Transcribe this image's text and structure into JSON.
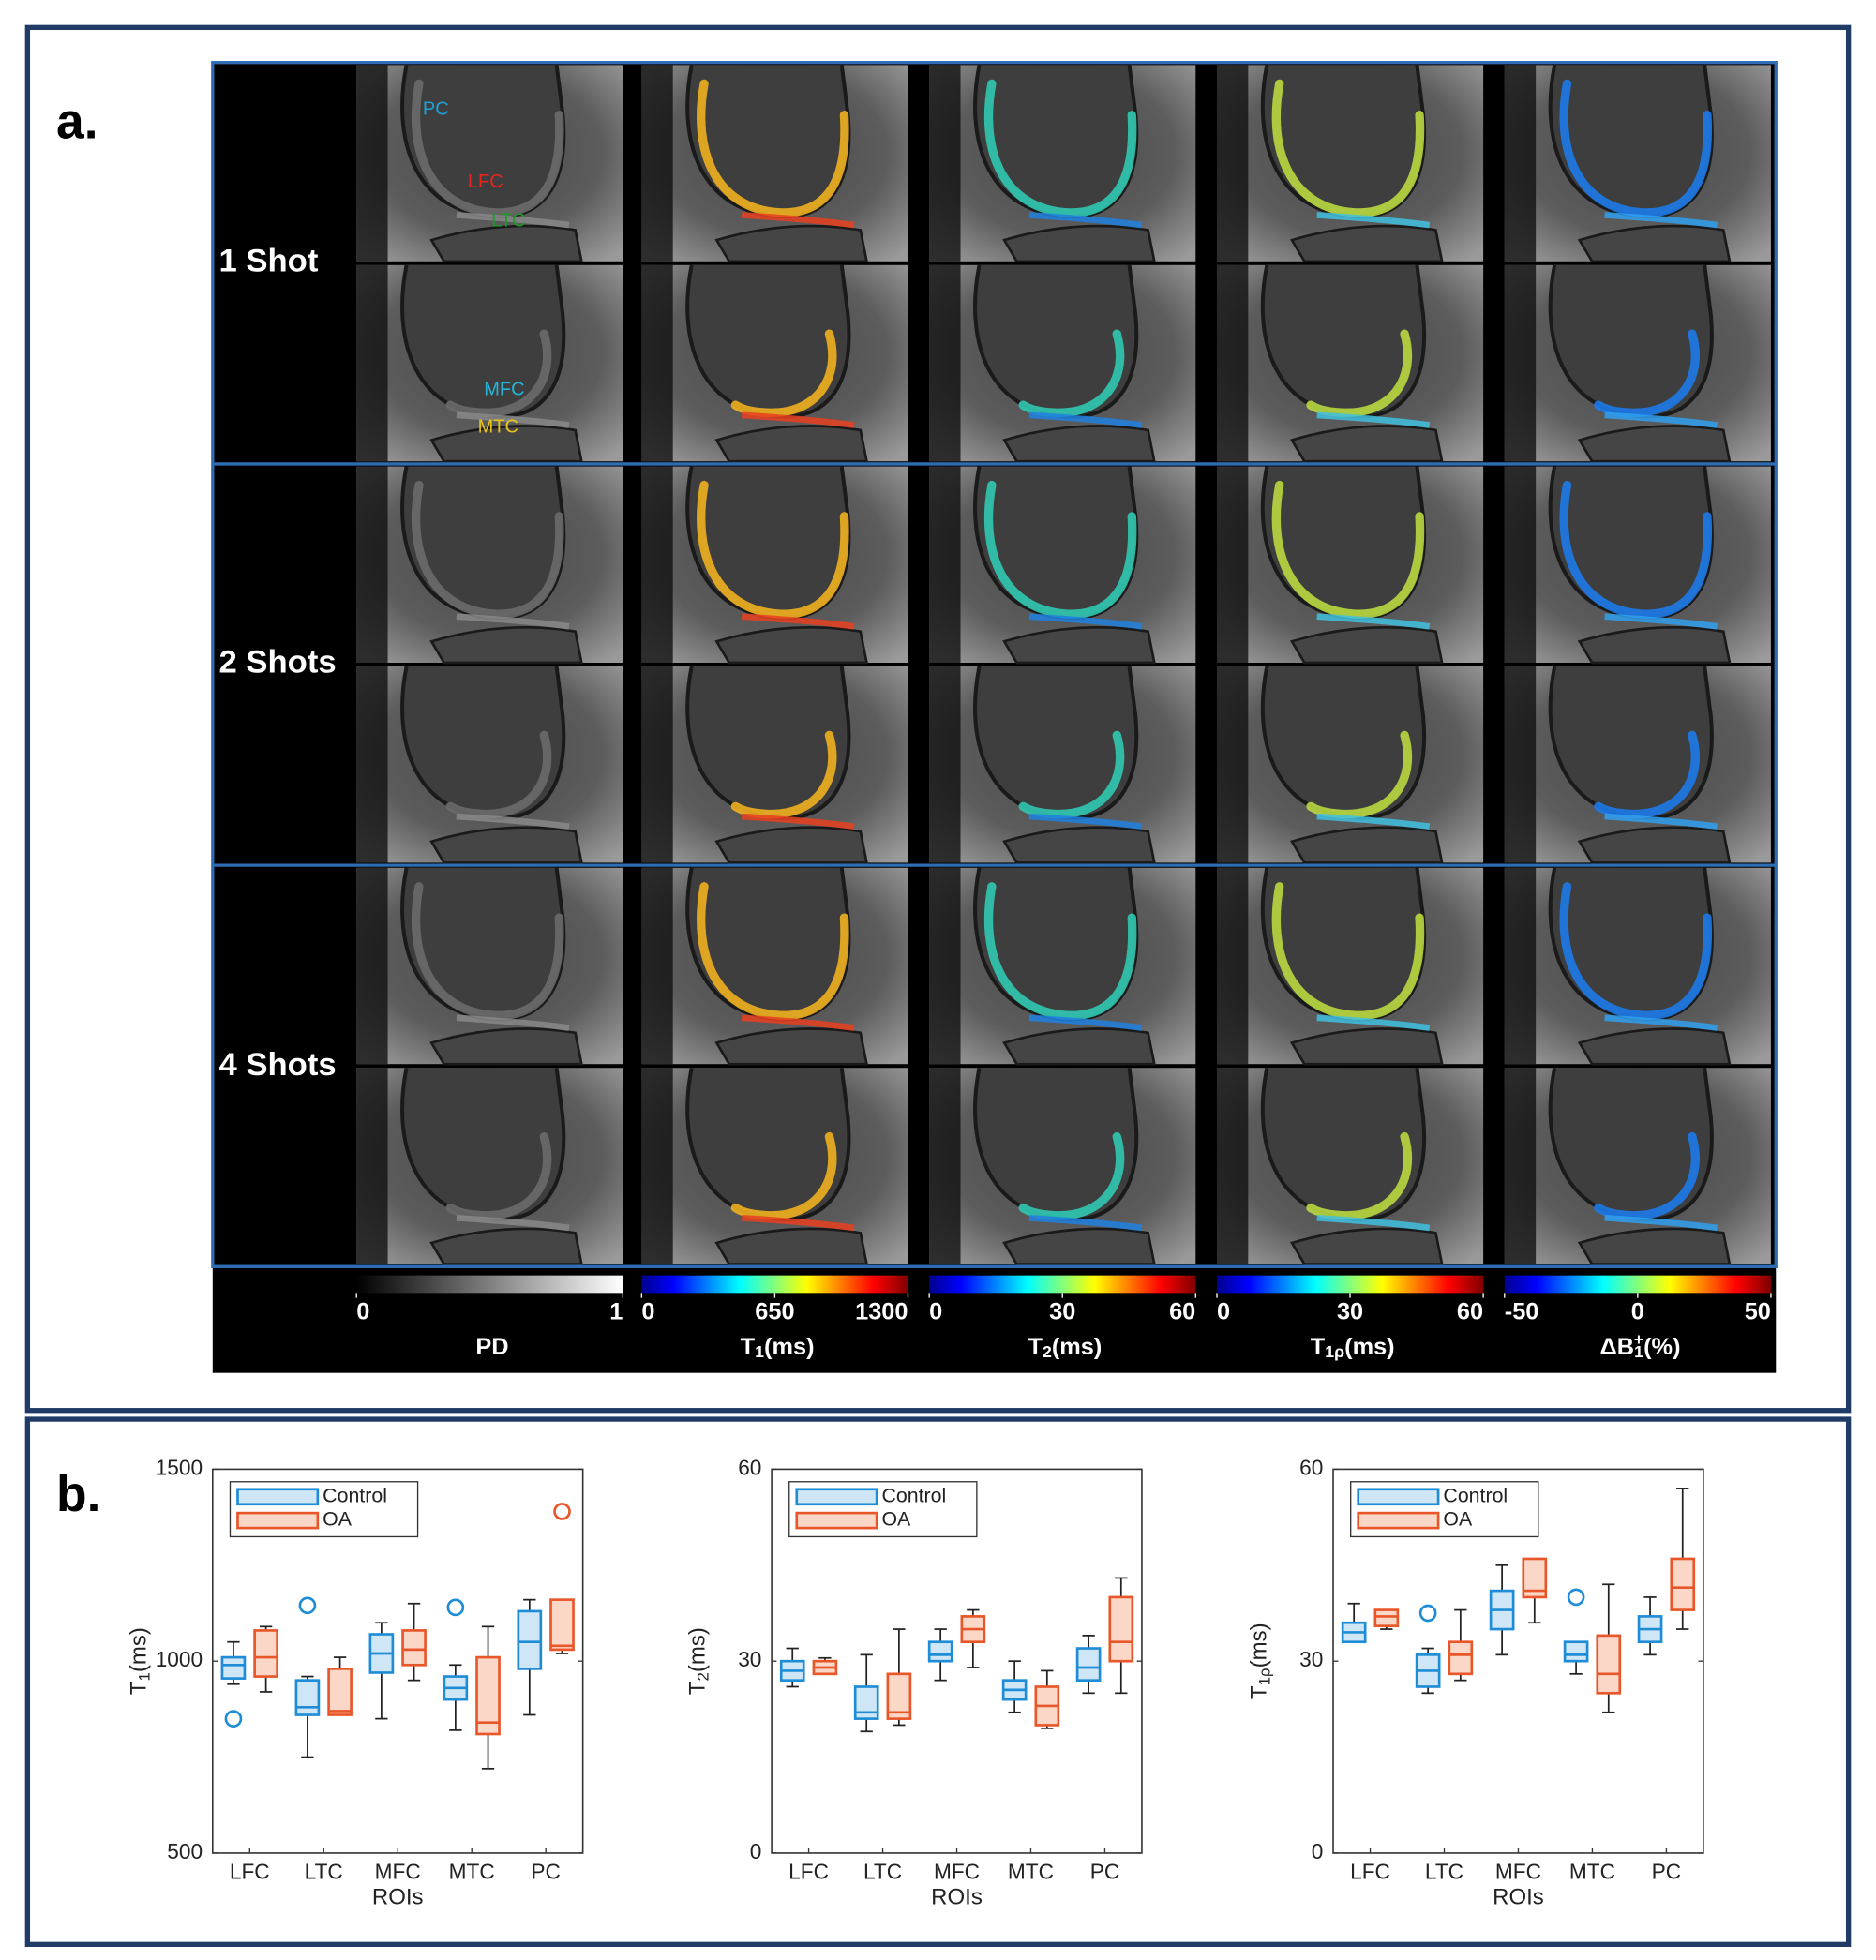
{
  "panel_a": {
    "label": "a.",
    "row_groups": [
      "1 Shot",
      "2 Shots",
      "4 Shots"
    ],
    "roi_labels": [
      {
        "text": "PC",
        "color": "#1fa0d8"
      },
      {
        "text": "LFC",
        "color": "#e8241c"
      },
      {
        "text": "LTC",
        "color": "#1f9a2a"
      },
      {
        "text": "MFC",
        "color": "#26b5d8"
      },
      {
        "text": "MTC",
        "color": "#e6c21a"
      }
    ],
    "colorbars": [
      {
        "title_parts": [
          {
            "text": "PD"
          }
        ],
        "lim": [
          0,
          1
        ],
        "ticks": [
          0,
          1
        ],
        "colormap": "gray"
      },
      {
        "title_parts": [
          {
            "text": "T"
          },
          {
            "text": "1",
            "sub": true
          },
          {
            "text": "(ms)"
          }
        ],
        "lim": [
          0,
          1300
        ],
        "ticks": [
          0,
          650,
          1300
        ],
        "colormap": "jet"
      },
      {
        "title_parts": [
          {
            "text": "T"
          },
          {
            "text": "2",
            "sub": true
          },
          {
            "text": "(ms)"
          }
        ],
        "lim": [
          0,
          60
        ],
        "ticks": [
          0,
          30,
          60
        ],
        "colormap": "jet"
      },
      {
        "title_parts": [
          {
            "text": "T"
          },
          {
            "text": "1ρ",
            "sub": true
          },
          {
            "text": "(ms)"
          }
        ],
        "lim": [
          0,
          60
        ],
        "ticks": [
          0,
          30,
          60
        ],
        "colormap": "jet"
      },
      {
        "title_parts": [
          {
            "text": "ΔB"
          },
          {
            "text": "1",
            "sub": true
          },
          {
            "text": "+",
            "sup": true
          },
          {
            "text": "(%)"
          }
        ],
        "lim": [
          -50,
          50
        ],
        "ticks": [
          -50,
          0,
          50
        ],
        "colormap": "jet"
      }
    ]
  },
  "panel_b": {
    "label": "b."
  },
  "chart_data": [
    {
      "type": "box",
      "xlabel": "ROIs",
      "ylabel_parts": [
        {
          "text": "T"
        },
        {
          "text": "1",
          "sub": true
        },
        {
          "text": "(ms)"
        }
      ],
      "categories": [
        "LFC",
        "LTC",
        "MFC",
        "MTC",
        "PC"
      ],
      "ylim": [
        500,
        1500
      ],
      "yticks": [
        500,
        1000,
        1500
      ],
      "legend": "upper left",
      "series": [
        {
          "name": "Control",
          "color": "#1f8dd6",
          "fill": "#cfe6f6",
          "min": [
            940,
            750,
            850,
            820,
            860
          ],
          "q1": [
            955,
            860,
            970,
            900,
            980
          ],
          "median": [
            990,
            880,
            1020,
            930,
            1050
          ],
          "q3": [
            1010,
            950,
            1070,
            960,
            1130
          ],
          "max": [
            1050,
            960,
            1100,
            990,
            1160
          ],
          "outliers": [
            [
              850
            ],
            [
              1145
            ],
            [],
            [
              1140
            ],
            []
          ]
        },
        {
          "name": "OA",
          "color": "#e8572a",
          "fill": "#fbd7c8",
          "min": [
            920,
            860,
            950,
            720,
            1020
          ],
          "q1": [
            960,
            860,
            990,
            810,
            1030
          ],
          "median": [
            1010,
            870,
            1030,
            840,
            1040
          ],
          "q3": [
            1080,
            980,
            1080,
            1010,
            1160
          ],
          "max": [
            1090,
            1010,
            1150,
            1090,
            1160
          ],
          "outliers": [
            [],
            [],
            [],
            [],
            [
              1390
            ]
          ]
        }
      ]
    },
    {
      "type": "box",
      "xlabel": "ROIs",
      "ylabel_parts": [
        {
          "text": "T"
        },
        {
          "text": "2",
          "sub": true
        },
        {
          "text": "(ms)"
        }
      ],
      "categories": [
        "LFC",
        "LTC",
        "MFC",
        "MTC",
        "PC"
      ],
      "ylim": [
        0,
        60
      ],
      "yticks": [
        0,
        30,
        60
      ],
      "legend": "upper left",
      "series": [
        {
          "name": "Control",
          "color": "#1f8dd6",
          "fill": "#cfe6f6",
          "min": [
            26,
            19,
            27,
            22,
            25
          ],
          "q1": [
            27,
            21,
            30,
            24,
            27
          ],
          "median": [
            28.5,
            22,
            31,
            25.5,
            29
          ],
          "q3": [
            30,
            26,
            33,
            27,
            32
          ],
          "max": [
            32,
            31,
            35,
            30,
            34
          ],
          "outliers": [
            [],
            [],
            [],
            [],
            []
          ]
        },
        {
          "name": "OA",
          "color": "#e8572a",
          "fill": "#fbd7c8",
          "min": [
            28,
            20,
            29,
            19.5,
            25
          ],
          "q1": [
            28,
            21,
            33,
            20,
            30
          ],
          "median": [
            29,
            22,
            35,
            23,
            33
          ],
          "q3": [
            30,
            28,
            37,
            26,
            40
          ],
          "max": [
            30.5,
            35,
            38,
            28.5,
            43
          ],
          "outliers": [
            [],
            [],
            [],
            [],
            []
          ]
        }
      ]
    },
    {
      "type": "box",
      "xlabel": "ROIs",
      "ylabel_parts": [
        {
          "text": "T"
        },
        {
          "text": "1ρ",
          "sub": true
        },
        {
          "text": "(ms)"
        }
      ],
      "categories": [
        "LFC",
        "LTC",
        "MFC",
        "MTC",
        "PC"
      ],
      "ylim": [
        0,
        60
      ],
      "yticks": [
        0,
        30,
        60
      ],
      "legend": "upper left",
      "series": [
        {
          "name": "Control",
          "color": "#1f8dd6",
          "fill": "#cfe6f6",
          "min": [
            33,
            25,
            31,
            28,
            31
          ],
          "q1": [
            33,
            26,
            35,
            30,
            33
          ],
          "median": [
            34.5,
            28.5,
            38,
            31,
            35
          ],
          "q3": [
            36,
            31,
            41,
            33,
            37
          ],
          "max": [
            39,
            32,
            45,
            33,
            40
          ],
          "outliers": [
            [],
            [
              37.5
            ],
            [],
            [
              40
            ],
            []
          ]
        },
        {
          "name": "OA",
          "color": "#e8572a",
          "fill": "#fbd7c8",
          "min": [
            35,
            27,
            36,
            22,
            35
          ],
          "q1": [
            35.5,
            28,
            40,
            25,
            38
          ],
          "median": [
            37,
            31,
            41,
            28,
            41.5
          ],
          "q3": [
            38,
            33,
            46,
            34,
            46
          ],
          "max": [
            38,
            38,
            46,
            42,
            57
          ],
          "outliers": [
            [],
            [],
            [],
            [],
            []
          ]
        }
      ]
    }
  ]
}
